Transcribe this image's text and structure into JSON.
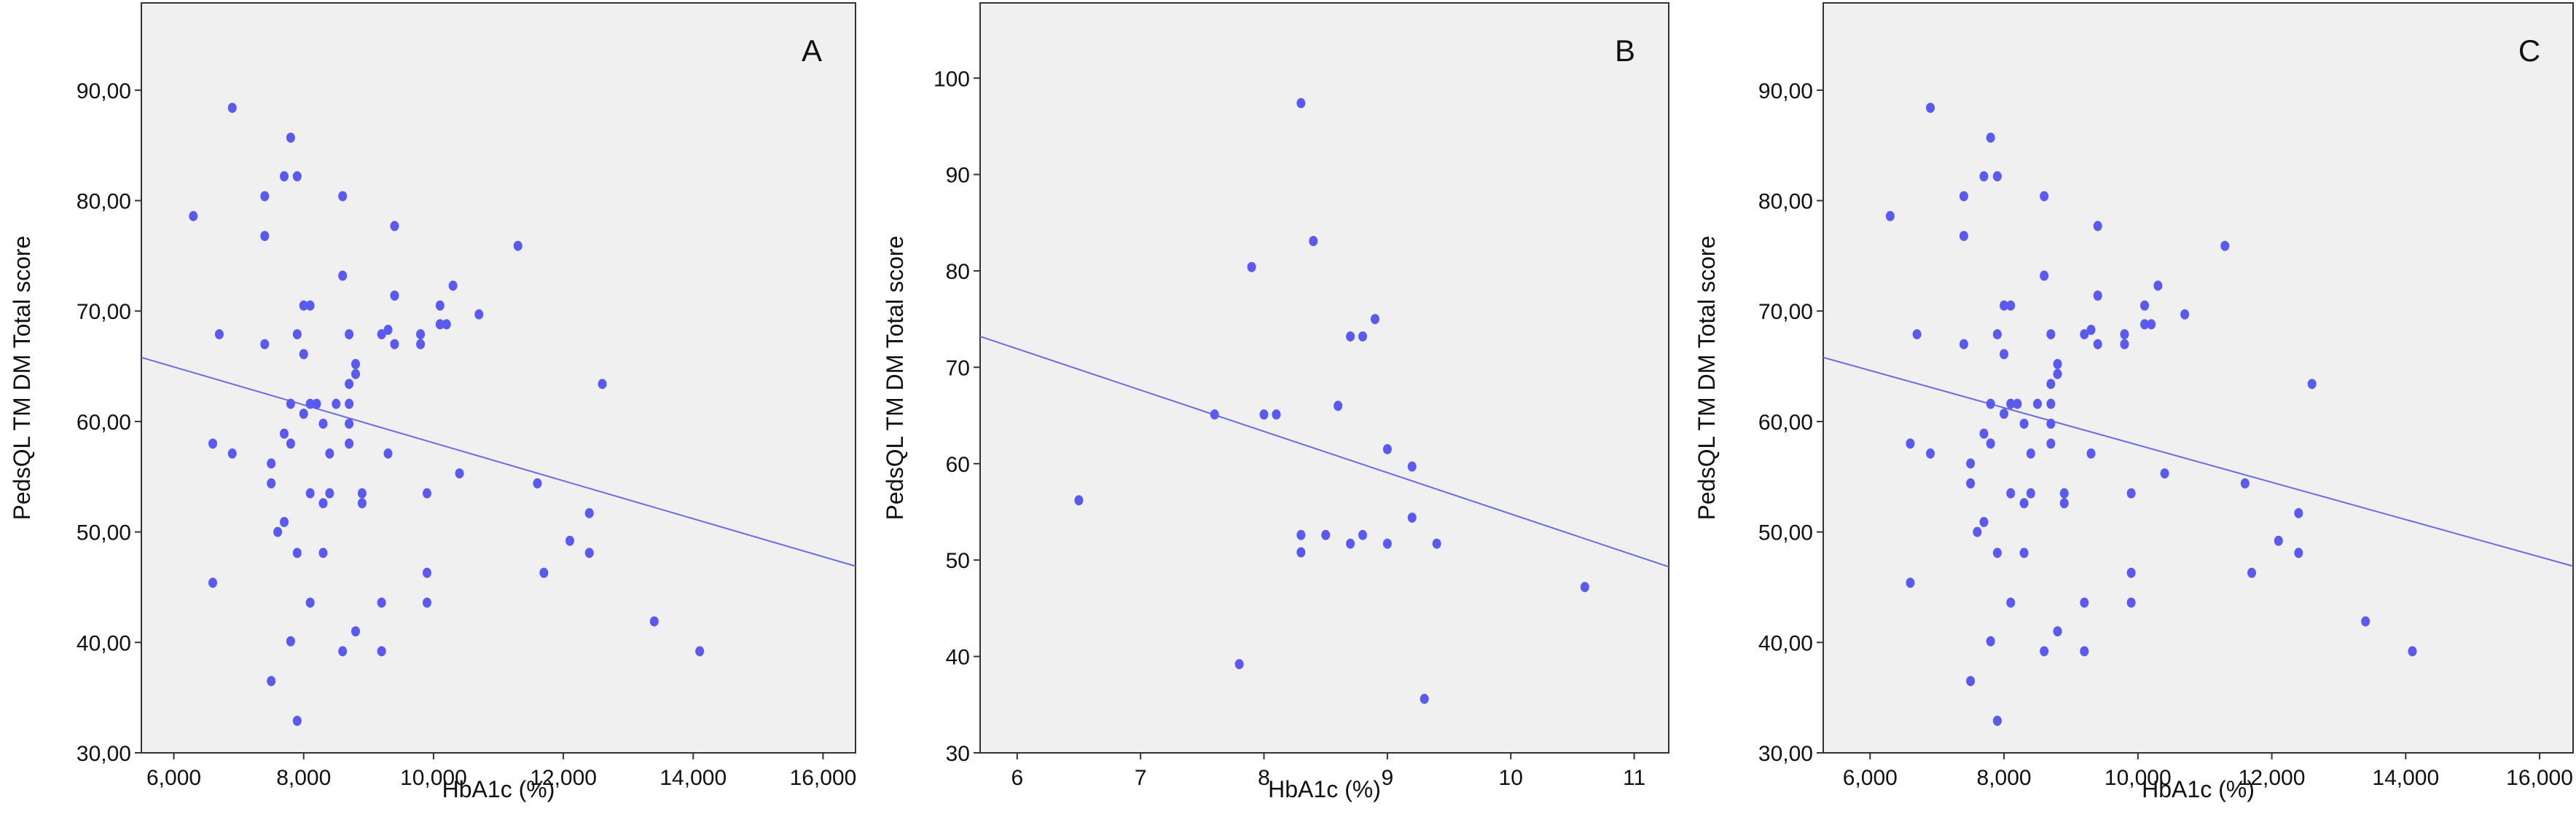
{
  "colors": {
    "point": "#5a5af0",
    "line": "#6b6be8",
    "plot_bg": "#f0f0f0",
    "axis": "#333333"
  },
  "chart_data": [
    {
      "type": "scatter",
      "panel_label": "A",
      "xlabel": "HbA1c (%)",
      "ylabel": "PedsQL TM DM Total score",
      "xlim": [
        5500,
        16500
      ],
      "ylim": [
        30,
        97.9
      ],
      "xticks": [
        6000,
        8000,
        10000,
        12000,
        14000,
        16000
      ],
      "xtick_labels": [
        "6,000",
        "8,000",
        "10,000",
        "12,000",
        "14,000",
        "16,000"
      ],
      "yticks": [
        30,
        40,
        50,
        60,
        70,
        80,
        90
      ],
      "ytick_labels": [
        "30,00",
        "40,00",
        "50,00",
        "60,00",
        "70,00",
        "80,00",
        "90,00"
      ],
      "grid": false,
      "fit_line": [
        [
          5500,
          65.8
        ],
        [
          16500,
          46.9
        ]
      ],
      "points": [
        [
          6900,
          88.4
        ],
        [
          7800,
          85.7
        ],
        [
          7700,
          82.2
        ],
        [
          7900,
          82.2
        ],
        [
          7400,
          80.4
        ],
        [
          8600,
          80.4
        ],
        [
          6300,
          78.6
        ],
        [
          7400,
          76.8
        ],
        [
          9400,
          77.7
        ],
        [
          11300,
          75.9
        ],
        [
          8600,
          73.2
        ],
        [
          10300,
          72.3
        ],
        [
          9400,
          71.4
        ],
        [
          8000,
          70.5
        ],
        [
          8100,
          70.5
        ],
        [
          10100,
          70.5
        ],
        [
          10700,
          69.7
        ],
        [
          6700,
          67.9
        ],
        [
          7900,
          67.9
        ],
        [
          8700,
          67.9
        ],
        [
          9200,
          67.9
        ],
        [
          9300,
          68.3
        ],
        [
          9800,
          67.9
        ],
        [
          10100,
          68.8
        ],
        [
          10200,
          68.8
        ],
        [
          7400,
          67.0
        ],
        [
          9400,
          67.0
        ],
        [
          9800,
          67.0
        ],
        [
          8000,
          66.1
        ],
        [
          8800,
          65.2
        ],
        [
          8800,
          64.3
        ],
        [
          8700,
          63.4
        ],
        [
          12600,
          63.4
        ],
        [
          7800,
          61.6
        ],
        [
          8100,
          61.6
        ],
        [
          8200,
          61.6
        ],
        [
          8500,
          61.6
        ],
        [
          8700,
          61.6
        ],
        [
          8000,
          60.7
        ],
        [
          8300,
          59.8
        ],
        [
          8700,
          59.8
        ],
        [
          7700,
          58.9
        ],
        [
          6600,
          58.0
        ],
        [
          7800,
          58.0
        ],
        [
          8700,
          58.0
        ],
        [
          6900,
          57.1
        ],
        [
          8400,
          57.1
        ],
        [
          9300,
          57.1
        ],
        [
          7500,
          56.2
        ],
        [
          10400,
          55.3
        ],
        [
          7500,
          54.4
        ],
        [
          11600,
          54.4
        ],
        [
          8100,
          53.5
        ],
        [
          8400,
          53.5
        ],
        [
          8900,
          53.5
        ],
        [
          9900,
          53.5
        ],
        [
          8300,
          52.6
        ],
        [
          8900,
          52.6
        ],
        [
          12400,
          51.7
        ],
        [
          7700,
          50.9
        ],
        [
          7600,
          50.0
        ],
        [
          12100,
          49.2
        ],
        [
          7900,
          48.1
        ],
        [
          8300,
          48.1
        ],
        [
          12400,
          48.1
        ],
        [
          9900,
          46.3
        ],
        [
          11700,
          46.3
        ],
        [
          6600,
          45.4
        ],
        [
          8100,
          43.6
        ],
        [
          9200,
          43.6
        ],
        [
          9900,
          43.6
        ],
        [
          13400,
          41.9
        ],
        [
          8800,
          41.0
        ],
        [
          7800,
          40.1
        ],
        [
          8600,
          39.2
        ],
        [
          9200,
          39.2
        ],
        [
          14100,
          39.2
        ],
        [
          7500,
          36.5
        ],
        [
          7900,
          32.9
        ]
      ]
    },
    {
      "type": "scatter",
      "panel_label": "B",
      "xlabel": "HbA1c (%)",
      "ylabel": "PedsQL TM DM Total score",
      "xlim": [
        5.7,
        11.28
      ],
      "ylim": [
        30,
        107.8
      ],
      "xticks": [
        6,
        7,
        8,
        9,
        10,
        11
      ],
      "xtick_labels": [
        "6",
        "7",
        "8",
        "9",
        "10",
        "11"
      ],
      "yticks": [
        30,
        40,
        50,
        60,
        70,
        80,
        90,
        100
      ],
      "ytick_labels": [
        "30",
        "40",
        "50",
        "60",
        "70",
        "80",
        "90",
        "100"
      ],
      "grid": false,
      "fit_line": [
        [
          5.7,
          73.2
        ],
        [
          11.28,
          49.3
        ]
      ],
      "points": [
        [
          8.3,
          97.4
        ],
        [
          8.4,
          83.1
        ],
        [
          7.9,
          80.4
        ],
        [
          8.9,
          75.0
        ],
        [
          8.7,
          73.2
        ],
        [
          8.8,
          73.2
        ],
        [
          7.6,
          65.1
        ],
        [
          8.0,
          65.1
        ],
        [
          8.1,
          65.1
        ],
        [
          8.6,
          66.0
        ],
        [
          9.0,
          61.5
        ],
        [
          9.2,
          59.7
        ],
        [
          6.5,
          56.2
        ],
        [
          9.2,
          54.4
        ],
        [
          8.3,
          52.6
        ],
        [
          8.5,
          52.6
        ],
        [
          8.8,
          52.6
        ],
        [
          8.7,
          51.7
        ],
        [
          9.0,
          51.7
        ],
        [
          9.4,
          51.7
        ],
        [
          8.3,
          50.8
        ],
        [
          10.6,
          47.2
        ],
        [
          7.8,
          39.2
        ],
        [
          9.3,
          35.6
        ]
      ]
    },
    {
      "type": "scatter",
      "panel_label": "C",
      "xlabel": "HbA1c (%)",
      "ylabel": "PedsQL TM DM Total score",
      "xlim": [
        5300,
        16500
      ],
      "ylim": [
        30,
        97.9
      ],
      "xticks": [
        6000,
        8000,
        10000,
        12000,
        14000,
        16000
      ],
      "xtick_labels": [
        "6,000",
        "8,000",
        "10,000",
        "12,000",
        "14,000",
        "16,000"
      ],
      "yticks": [
        30,
        40,
        50,
        60,
        70,
        80,
        90
      ],
      "ytick_labels": [
        "30,00",
        "40,00",
        "50,00",
        "60,00",
        "70,00",
        "80,00",
        "90,00"
      ],
      "grid": false,
      "fit_line": [
        [
          5300,
          65.8
        ],
        [
          16500,
          46.9
        ]
      ],
      "points": [
        [
          6900,
          88.4
        ],
        [
          7800,
          85.7
        ],
        [
          7700,
          82.2
        ],
        [
          7900,
          82.2
        ],
        [
          7400,
          80.4
        ],
        [
          8600,
          80.4
        ],
        [
          6300,
          78.6
        ],
        [
          7400,
          76.8
        ],
        [
          9400,
          77.7
        ],
        [
          11300,
          75.9
        ],
        [
          8600,
          73.2
        ],
        [
          10300,
          72.3
        ],
        [
          9400,
          71.4
        ],
        [
          8000,
          70.5
        ],
        [
          8100,
          70.5
        ],
        [
          10100,
          70.5
        ],
        [
          10700,
          69.7
        ],
        [
          6700,
          67.9
        ],
        [
          7900,
          67.9
        ],
        [
          8700,
          67.9
        ],
        [
          9200,
          67.9
        ],
        [
          9300,
          68.3
        ],
        [
          9800,
          67.9
        ],
        [
          10100,
          68.8
        ],
        [
          10200,
          68.8
        ],
        [
          7400,
          67.0
        ],
        [
          9400,
          67.0
        ],
        [
          9800,
          67.0
        ],
        [
          8000,
          66.1
        ],
        [
          8800,
          65.2
        ],
        [
          8800,
          64.3
        ],
        [
          8700,
          63.4
        ],
        [
          12600,
          63.4
        ],
        [
          7800,
          61.6
        ],
        [
          8100,
          61.6
        ],
        [
          8200,
          61.6
        ],
        [
          8500,
          61.6
        ],
        [
          8700,
          61.6
        ],
        [
          8000,
          60.7
        ],
        [
          8300,
          59.8
        ],
        [
          8700,
          59.8
        ],
        [
          7700,
          58.9
        ],
        [
          6600,
          58.0
        ],
        [
          7800,
          58.0
        ],
        [
          8700,
          58.0
        ],
        [
          6900,
          57.1
        ],
        [
          8400,
          57.1
        ],
        [
          9300,
          57.1
        ],
        [
          7500,
          56.2
        ],
        [
          10400,
          55.3
        ],
        [
          7500,
          54.4
        ],
        [
          11600,
          54.4
        ],
        [
          8100,
          53.5
        ],
        [
          8400,
          53.5
        ],
        [
          8900,
          53.5
        ],
        [
          9900,
          53.5
        ],
        [
          8300,
          52.6
        ],
        [
          8900,
          52.6
        ],
        [
          12400,
          51.7
        ],
        [
          7700,
          50.9
        ],
        [
          7600,
          50.0
        ],
        [
          12100,
          49.2
        ],
        [
          7900,
          48.1
        ],
        [
          8300,
          48.1
        ],
        [
          12400,
          48.1
        ],
        [
          9900,
          46.3
        ],
        [
          11700,
          46.3
        ],
        [
          6600,
          45.4
        ],
        [
          8100,
          43.6
        ],
        [
          9200,
          43.6
        ],
        [
          9900,
          43.6
        ],
        [
          13400,
          41.9
        ],
        [
          8800,
          41.0
        ],
        [
          7800,
          40.1
        ],
        [
          8600,
          39.2
        ],
        [
          9200,
          39.2
        ],
        [
          14100,
          39.2
        ],
        [
          7500,
          36.5
        ],
        [
          7900,
          32.9
        ]
      ]
    }
  ]
}
